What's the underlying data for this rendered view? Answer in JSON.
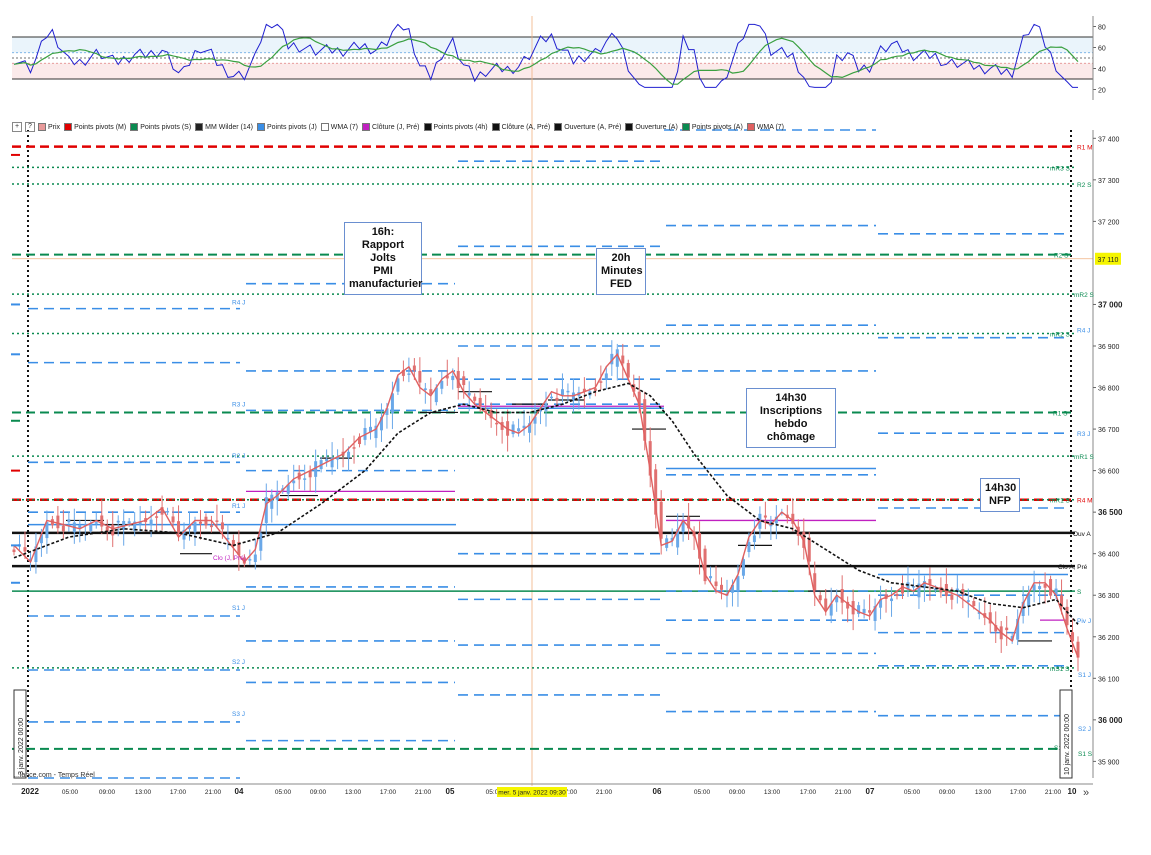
{
  "source": "...lance.com - Temps Réel",
  "expand_icon": "»",
  "legend": [
    {
      "label": "Prix",
      "color": "#e89a9a"
    },
    {
      "label": "Points pivots (M)",
      "color": "#e00000"
    },
    {
      "label": "Points pivots (S)",
      "color": "#0a8a50"
    },
    {
      "label": "MM Wilder (14)",
      "color": "#222222"
    },
    {
      "label": "Points pivots (J)",
      "color": "#3a8ee6"
    },
    {
      "label": "WMA (7)",
      "color": "#ffffff"
    },
    {
      "label": "Clôture (J, Pré)",
      "color": "#c020c0"
    },
    {
      "label": "Points pivots (4h)",
      "color": "#111111"
    },
    {
      "label": "Clôture (A, Pré)",
      "color": "#111111"
    },
    {
      "label": "Ouverture (A, Pré)",
      "color": "#111111"
    },
    {
      "label": "Ouverture (A)",
      "color": "#111111"
    },
    {
      "label": "Points pivots (A)",
      "color": "#0a8a50"
    },
    {
      "label": "WMA (7)",
      "color": "#e06060"
    }
  ],
  "annotations": {
    "jolts": "16h:\nRapport Jolts\nPMI\nmanufacturier",
    "fed": "20h\nMinutes\nFED",
    "chomage": "14h30\nInscriptions\nhebdo chômage",
    "nfp": "14h30\nNFP"
  },
  "colors": {
    "up": "#6aa8e8",
    "down": "#e07070",
    "wma": "#e06060",
    "blue": "#3a8ee6",
    "green": "#0a8a50",
    "red": "#e00000",
    "magenta": "#c020c0",
    "black": "#111111",
    "rsi": "#2020d0",
    "rsi_ma": "#3aa040"
  },
  "chart_data": [
    {
      "type": "line",
      "panel": "oscillator",
      "y_ticks": [
        80,
        60,
        40,
        20
      ],
      "ylim": [
        10,
        90
      ],
      "levels": [
        70,
        55,
        50,
        45,
        30
      ],
      "series": []
    },
    {
      "type": "candlestick",
      "panel": "price",
      "y_ticks": [
        "37 400",
        "37 300",
        "37 200",
        "37 000",
        "36 900",
        "36 800",
        "36 700",
        "36 600",
        "36 500",
        "36 400",
        "36 300",
        "36 200",
        "36 100",
        "36 000",
        "35 900"
      ],
      "y_tick_values": [
        37400,
        37300,
        37200,
        37000,
        36900,
        36800,
        36700,
        36600,
        36500,
        36400,
        36300,
        36200,
        36100,
        36000,
        35900
      ],
      "bold_ticks": [
        "37 000",
        "36 500",
        "36 000"
      ],
      "ylim": [
        35860,
        37420
      ],
      "x_ticks": [
        {
          "label": "2022",
          "bold": true
        },
        {
          "label": "05:00"
        },
        {
          "label": "09:00"
        },
        {
          "label": "13:00"
        },
        {
          "label": "17:00"
        },
        {
          "label": "21:00"
        },
        {
          "label": "04",
          "bold": true
        },
        {
          "label": "05:00"
        },
        {
          "label": "09:00"
        },
        {
          "label": "13:00"
        },
        {
          "label": "17:00"
        },
        {
          "label": "21:00"
        },
        {
          "label": "05",
          "bold": true
        },
        {
          "label": "05:0"
        },
        {
          "label": "17:00"
        },
        {
          "label": "21:00"
        },
        {
          "label": "06",
          "bold": true
        },
        {
          "label": "05:00"
        },
        {
          "label": "09:00"
        },
        {
          "label": "13:00"
        },
        {
          "label": "17:00"
        },
        {
          "label": "21:00"
        },
        {
          "label": "07",
          "bold": true
        },
        {
          "label": "05:00"
        },
        {
          "label": "09:00"
        },
        {
          "label": "13:00"
        },
        {
          "label": "17:00"
        },
        {
          "label": "21:00"
        },
        {
          "label": "10",
          "bold": true
        }
      ],
      "cursor_x_label": "mer. 5 janv. 2022 09:30",
      "last_price_label": "37 110",
      "vertical_date_left": "3 janv. 2022 00:00",
      "vertical_date_right": "10 janv. 2022 00:00",
      "close_path": [
        [
          0,
          36420
        ],
        [
          3,
          36380
        ],
        [
          6,
          36480
        ],
        [
          9,
          36470
        ],
        [
          12,
          36460
        ],
        [
          15,
          36480
        ],
        [
          18,
          36460
        ],
        [
          21,
          36470
        ],
        [
          24,
          36480
        ],
        [
          27,
          36510
        ],
        [
          30,
          36440
        ],
        [
          33,
          36480
        ],
        [
          36,
          36480
        ],
        [
          39,
          36430
        ],
        [
          42,
          36380
        ],
        [
          44,
          36410
        ],
        [
          46,
          36520
        ],
        [
          48,
          36540
        ],
        [
          51,
          36580
        ],
        [
          54,
          36600
        ],
        [
          57,
          36620
        ],
        [
          60,
          36640
        ],
        [
          63,
          36680
        ],
        [
          66,
          36700
        ],
        [
          68,
          36750
        ],
        [
          70,
          36830
        ],
        [
          72,
          36850
        ],
        [
          74,
          36800
        ],
        [
          76,
          36780
        ],
        [
          78,
          36820
        ],
        [
          80,
          36840
        ],
        [
          82,
          36790
        ],
        [
          84,
          36760
        ],
        [
          86,
          36740
        ],
        [
          88,
          36720
        ],
        [
          90,
          36700
        ],
        [
          92,
          36690
        ],
        [
          94,
          36710
        ],
        [
          96,
          36750
        ],
        [
          98,
          36790
        ],
        [
          100,
          36780
        ],
        [
          102,
          36780
        ],
        [
          104,
          36790
        ],
        [
          106,
          36800
        ],
        [
          108,
          36850
        ],
        [
          110,
          36880
        ],
        [
          112,
          36820
        ],
        [
          114,
          36760
        ],
        [
          116,
          36600
        ],
        [
          118,
          36420
        ],
        [
          120,
          36430
        ],
        [
          122,
          36480
        ],
        [
          124,
          36450
        ],
        [
          126,
          36350
        ],
        [
          128,
          36310
        ],
        [
          130,
          36300
        ],
        [
          132,
          36350
        ],
        [
          134,
          36440
        ],
        [
          136,
          36480
        ],
        [
          138,
          36470
        ],
        [
          140,
          36500
        ],
        [
          142,
          36480
        ],
        [
          144,
          36430
        ],
        [
          146,
          36300
        ],
        [
          148,
          36260
        ],
        [
          150,
          36300
        ],
        [
          152,
          36280
        ],
        [
          154,
          36260
        ],
        [
          156,
          36250
        ],
        [
          158,
          36290
        ],
        [
          160,
          36300
        ],
        [
          162,
          36320
        ],
        [
          164,
          36310
        ],
        [
          166,
          36330
        ],
        [
          168,
          36320
        ],
        [
          170,
          36310
        ],
        [
          172,
          36300
        ],
        [
          174,
          36280
        ],
        [
          176,
          36260
        ],
        [
          178,
          36240
        ],
        [
          180,
          36210
        ],
        [
          182,
          36190
        ],
        [
          184,
          36280
        ],
        [
          186,
          36330
        ],
        [
          188,
          36330
        ],
        [
          190,
          36300
        ],
        [
          192,
          36220
        ],
        [
          194,
          36150
        ]
      ],
      "wilder_path": [
        [
          0,
          36390
        ],
        [
          10,
          36440
        ],
        [
          20,
          36460
        ],
        [
          30,
          36450
        ],
        [
          40,
          36420
        ],
        [
          48,
          36450
        ],
        [
          56,
          36520
        ],
        [
          64,
          36600
        ],
        [
          70,
          36690
        ],
        [
          76,
          36740
        ],
        [
          82,
          36760
        ],
        [
          88,
          36740
        ],
        [
          94,
          36740
        ],
        [
          100,
          36760
        ],
        [
          106,
          36790
        ],
        [
          112,
          36810
        ],
        [
          116,
          36780
        ],
        [
          120,
          36720
        ],
        [
          124,
          36640
        ],
        [
          130,
          36540
        ],
        [
          136,
          36480
        ],
        [
          142,
          36460
        ],
        [
          148,
          36410
        ],
        [
          154,
          36360
        ],
        [
          160,
          36330
        ],
        [
          166,
          36320
        ],
        [
          172,
          36310
        ],
        [
          178,
          36280
        ],
        [
          184,
          36270
        ],
        [
          190,
          36290
        ],
        [
          194,
          36230
        ]
      ],
      "horizontal_levels": [
        {
          "group": "Points pivots (M)",
          "label": "R1 M",
          "value": 37380
        },
        {
          "group": "Points pivots (M)",
          "label": "Pivot M",
          "value": 36530
        },
        {
          "group": "Points pivots (S)",
          "label": "mR3 S",
          "value": 37330
        },
        {
          "group": "Points pivots (S)",
          "label": "R2 S",
          "value": 37290
        },
        {
          "group": "Points pivots (S)",
          "label": "R2 S",
          "value": 37120
        },
        {
          "group": "Points pivots (S)",
          "label": "mR2 S",
          "value": 37025
        },
        {
          "group": "Points pivots (S)",
          "label": "mR2 S",
          "value": 36930
        },
        {
          "group": "Points pivots (S)",
          "label": "R1 S",
          "value": 36740
        },
        {
          "group": "Points pivots (S)",
          "label": "mR1 S",
          "value": 36635
        },
        {
          "group": "Points pivots (S)",
          "label": "mR1 S",
          "value": 36530
        },
        {
          "group": "Points pivots (S)",
          "label": "S",
          "value": 36310
        },
        {
          "group": "Points pivots (S)",
          "label": "mS1 S",
          "value": 36125
        },
        {
          "group": "Points pivots (S)",
          "label": "S1 S",
          "value": 35930
        },
        {
          "group": "Ouverture (A)",
          "label": "Ouv A",
          "value": 36450
        },
        {
          "group": "Clôture (A, Pré)",
          "label": "Clo A, Pré",
          "value": 36370
        }
      ],
      "right_labels": [
        "R1 M",
        "mR3 S",
        "R2 S",
        "R2 S",
        "mR2 S",
        "R4 J",
        "mR2 S",
        "R1 S",
        "R3 J",
        "mR1 S",
        "mR1 S",
        "R4 M",
        "Ouv A",
        "Clo A, Pré",
        "S",
        "Piv J",
        "mS1 S",
        "S1 J",
        "S2 J",
        "S1",
        "S1 S"
      ],
      "left_labels": [
        "R4 J",
        "R3 J",
        "R2 J",
        "R1 J",
        "S1 J",
        "S2 J",
        "S3 J",
        "Clo (J, Pré)"
      ]
    }
  ]
}
